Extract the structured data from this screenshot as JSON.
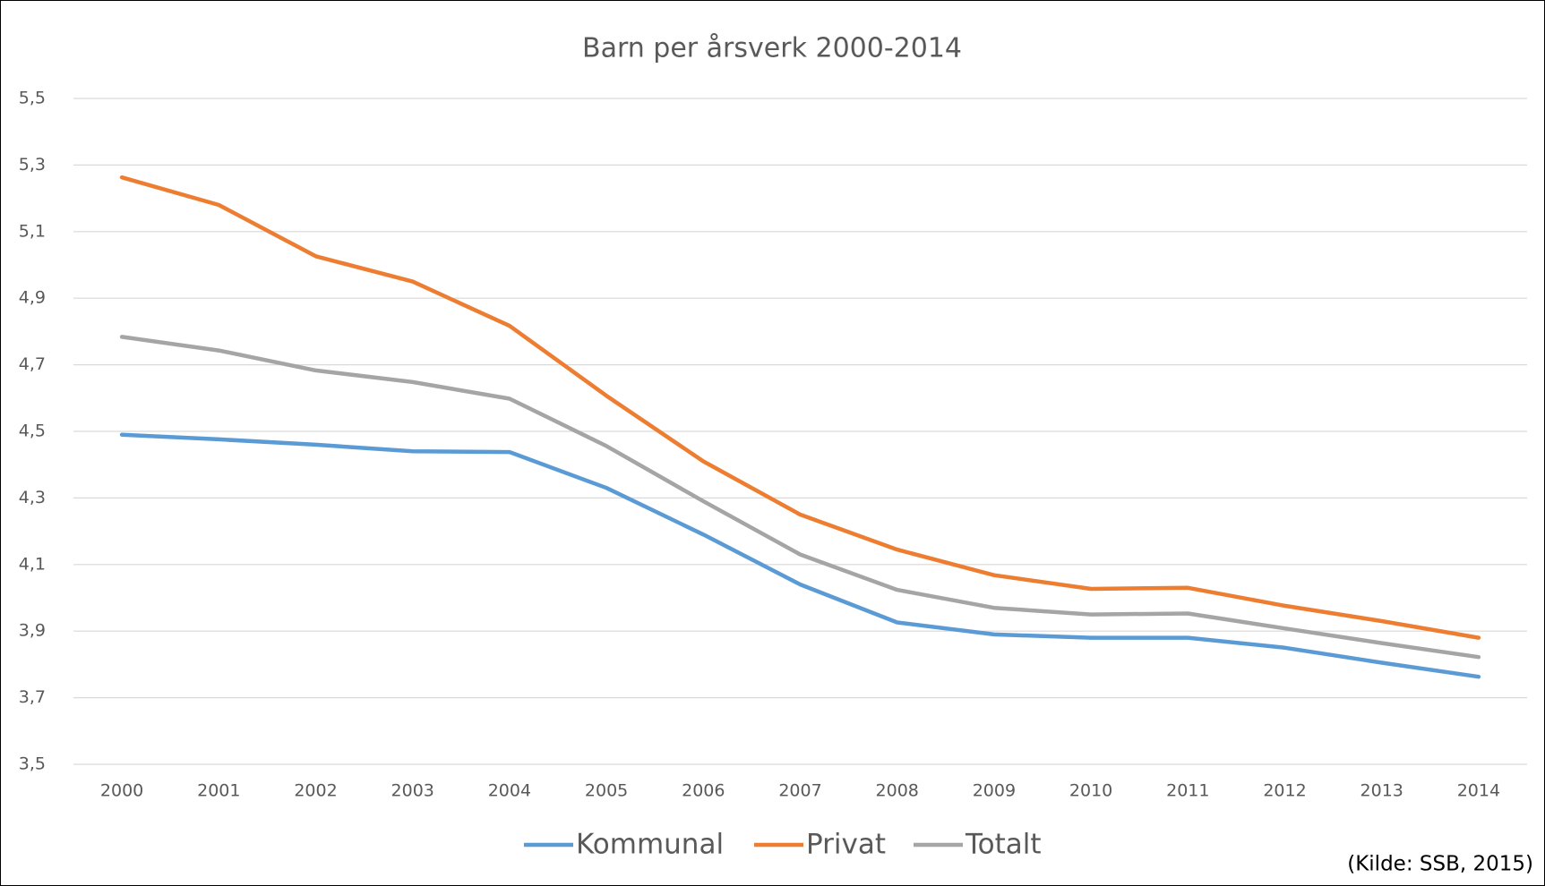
{
  "chart_data": {
    "type": "line",
    "title": "Barn per årsverk 2000-2014",
    "categories": [
      "2000",
      "2001",
      "2002",
      "2003",
      "2004",
      "2005",
      "2006",
      "2007",
      "2008",
      "2009",
      "2010",
      "2011",
      "2012",
      "2013",
      "2014"
    ],
    "series": [
      {
        "name": "Kommunal",
        "color": "#5b9bd5",
        "values": [
          4.49,
          4.476,
          4.46,
          4.44,
          4.438,
          4.33,
          4.19,
          4.04,
          3.926,
          3.89,
          3.88,
          3.88,
          3.85,
          3.805,
          3.763
        ]
      },
      {
        "name": "Privat",
        "color": "#ed7d31",
        "values": [
          5.263,
          5.18,
          5.026,
          4.95,
          4.817,
          4.607,
          4.41,
          4.25,
          4.145,
          4.068,
          4.027,
          4.03,
          3.976,
          3.93,
          3.88
        ]
      },
      {
        "name": "Totalt",
        "color": "#a5a5a5",
        "values": [
          4.784,
          4.743,
          4.683,
          4.648,
          4.598,
          4.456,
          4.29,
          4.13,
          4.024,
          3.97,
          3.95,
          3.953,
          3.908,
          3.864,
          3.822
        ]
      }
    ],
    "ylim": [
      3.5,
      5.5
    ],
    "yticks": [
      {
        "value": 3.5,
        "label": "3,5"
      },
      {
        "value": 3.7,
        "label": "3,7"
      },
      {
        "value": 3.9,
        "label": "3,9"
      },
      {
        "value": 4.1,
        "label": "4,1"
      },
      {
        "value": 4.3,
        "label": "4,3"
      },
      {
        "value": 4.5,
        "label": "4,5"
      },
      {
        "value": 4.7,
        "label": "4,7"
      },
      {
        "value": 4.9,
        "label": "4,9"
      },
      {
        "value": 5.1,
        "label": "5,1"
      },
      {
        "value": 5.3,
        "label": "5,3"
      },
      {
        "value": 5.5,
        "label": "5,5"
      }
    ],
    "grid": true,
    "legend": "bottom",
    "source": "(Kilde: SSB, 2015)"
  }
}
